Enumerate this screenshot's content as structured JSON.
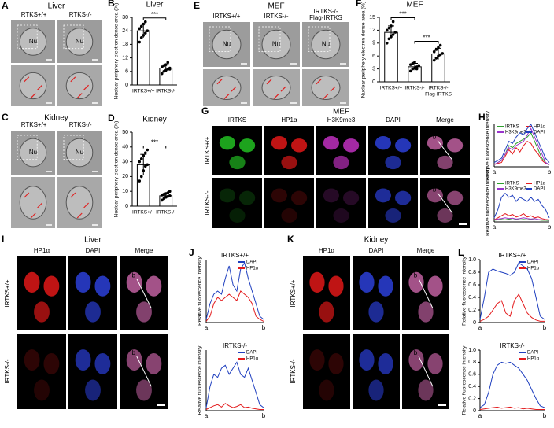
{
  "images": [
    {
      "letter": "A",
      "title": "Liver",
      "columns": [
        "IRTKS+/+",
        "IRTKS-/-"
      ],
      "labels": [
        "Nu",
        "Nu"
      ]
    },
    {
      "letter": "C",
      "title": "Kidney",
      "columns": [
        "IRTKS+/+",
        "IRTKS-/-"
      ],
      "labels": [
        "Nu",
        "Nu"
      ]
    },
    {
      "letter": "E",
      "title": "MEF",
      "columns": [
        "IRTKS+/+",
        "IRTKS-/-",
        "IRTKS-/-"
      ],
      "column_notes": [
        null,
        null,
        "Flag-IRTKS"
      ],
      "labels": [
        "Nu",
        "Nu",
        "Nu"
      ]
    },
    {
      "letter": "G",
      "title": "MEF",
      "columns": [
        "IRTKS",
        "HP1α",
        "H3K9me3",
        "DAPI",
        "Merge"
      ],
      "rows": [
        "IRTKS+/+",
        "IRTKS-/-"
      ],
      "point_labels": [
        "a",
        "b"
      ]
    },
    {
      "letter": "I",
      "title": "Liver",
      "columns": [
        "HP1α",
        "DAPI",
        "Merge"
      ],
      "rows": [
        "IRTKS+/+",
        "IRTKS-/-"
      ],
      "point_labels": [
        "a",
        "b"
      ]
    },
    {
      "letter": "K",
      "title": "Kidney",
      "columns": [
        "HP1α",
        "DAPI",
        "Merge"
      ],
      "rows": [
        "IRTKS+/+",
        "IRTKS-/-"
      ],
      "point_labels": [
        "a",
        "b"
      ]
    }
  ],
  "chart_data": [
    {
      "type": "bar",
      "letter": "B",
      "title": "Liver",
      "ylabel": "Nuclear periphery electron dense area (%)",
      "categories": [
        "IRTKS+/+",
        "IRTKS-/-"
      ],
      "values": [
        24,
        7.5
      ],
      "errors": [
        3,
        1.5
      ],
      "points": [
        [
          19,
          21,
          22,
          23,
          24,
          25,
          26,
          27,
          28,
          24
        ],
        [
          5,
          6,
          6.5,
          7,
          7.5,
          8,
          8.5,
          9,
          10,
          7
        ]
      ],
      "ylim": [
        0,
        30
      ],
      "yticks": [
        0,
        6,
        12,
        18,
        24,
        30
      ],
      "annotations": [
        "***"
      ]
    },
    {
      "type": "bar",
      "letter": "D",
      "title": "Kidney",
      "ylabel": "Nuclear periphery electron dense area (%)",
      "categories": [
        "IRTKS+/+",
        "IRTKS-/-"
      ],
      "values": [
        28,
        7
      ],
      "errors": [
        7,
        1.5
      ],
      "points": [
        [
          17,
          20,
          24,
          27,
          28,
          30,
          32,
          34,
          36,
          38
        ],
        [
          4,
          5,
          6,
          6.5,
          7,
          7.5,
          8,
          8.5,
          9,
          10
        ]
      ],
      "ylim": [
        0,
        50
      ],
      "yticks": [
        0,
        10,
        20,
        30,
        40,
        50
      ],
      "annotations": [
        "***"
      ]
    },
    {
      "type": "bar",
      "letter": "F",
      "title": "MEF",
      "ylabel": "Nuclear periphery electron dense area (%)",
      "categories": [
        "IRTKS+/+",
        "IRTKS-/-",
        "IRTKS-/-"
      ],
      "category_notes": [
        null,
        null,
        "Flag-IRTKS"
      ],
      "values": [
        11.5,
        3.5,
        6.5
      ],
      "errors": [
        1.5,
        0.8,
        1.3
      ],
      "points": [
        [
          9,
          10,
          10.5,
          11,
          11.5,
          12,
          12.5,
          13,
          14
        ],
        [
          2.5,
          3,
          3.2,
          3.5,
          3.8,
          4,
          4.3,
          4.6,
          3
        ],
        [
          5,
          5.5,
          6,
          6.3,
          6.6,
          7,
          7.5,
          8,
          8.5
        ]
      ],
      "ylim": [
        0,
        15
      ],
      "yticks": [
        0,
        3,
        6,
        9,
        12,
        15
      ],
      "annotations": [
        "***",
        "***"
      ]
    },
    {
      "type": "line",
      "letter": "H",
      "ylabel": "Relative fluorescence intensity",
      "xlabels": [
        "a",
        "b"
      ],
      "ylim": [
        0,
        1
      ],
      "series": [
        {
          "name": "IRTKS",
          "color": "#2ca02c",
          "values": [
            0.05,
            0.1,
            0.15,
            0.3,
            0.5,
            0.45,
            0.55,
            0.6,
            0.65,
            0.7,
            0.8,
            0.6,
            0.4,
            0.2,
            0.1,
            0.05
          ]
        },
        {
          "name": "HP1α",
          "color": "#e31a1c",
          "values": [
            0.05,
            0.08,
            0.1,
            0.25,
            0.4,
            0.3,
            0.45,
            0.35,
            0.5,
            0.6,
            0.55,
            0.4,
            0.3,
            0.15,
            0.08,
            0.05
          ]
        },
        {
          "name": "H3K9me3",
          "color": "#9933cc",
          "values": [
            0.05,
            0.1,
            0.15,
            0.3,
            0.45,
            0.4,
            0.5,
            0.55,
            0.6,
            0.75,
            0.9,
            0.7,
            0.5,
            0.3,
            0.1,
            0.05
          ]
        },
        {
          "name": "DAPI",
          "color": "#1f3fbf",
          "values": [
            0.1,
            0.15,
            0.2,
            0.4,
            0.6,
            0.55,
            0.7,
            0.8,
            0.75,
            0.9,
            1.0,
            0.8,
            0.6,
            0.4,
            0.2,
            0.1
          ]
        }
      ]
    },
    {
      "type": "line",
      "ylabel": "Relative fluorescence intensity",
      "xlabels": [
        "a",
        "b"
      ],
      "ylim": [
        0,
        1
      ],
      "series": [
        {
          "name": "IRTKS",
          "color": "#2ca02c",
          "values": [
            0.04,
            0.05,
            0.06,
            0.05,
            0.07,
            0.05,
            0.06,
            0.05,
            0.06,
            0.05,
            0.06,
            0.05,
            0.05,
            0.04,
            0.04,
            0.03
          ]
        },
        {
          "name": "HP1α",
          "color": "#e31a1c",
          "values": [
            0.05,
            0.1,
            0.15,
            0.2,
            0.15,
            0.18,
            0.12,
            0.15,
            0.2,
            0.12,
            0.15,
            0.1,
            0.12,
            0.08,
            0.06,
            0.05
          ]
        },
        {
          "name": "H3K9me3",
          "color": "#9933cc",
          "values": [
            0.05,
            0.07,
            0.08,
            0.1,
            0.08,
            0.09,
            0.07,
            0.08,
            0.1,
            0.08,
            0.07,
            0.08,
            0.06,
            0.05,
            0.05,
            0.04
          ]
        },
        {
          "name": "DAPI",
          "color": "#1f3fbf",
          "values": [
            0.1,
            0.3,
            0.6,
            0.7,
            0.6,
            0.65,
            0.5,
            0.6,
            0.55,
            0.5,
            0.6,
            0.5,
            0.55,
            0.4,
            0.3,
            0.1
          ]
        }
      ]
    },
    {
      "type": "line",
      "letter": "J",
      "subtitle": "IRTKS+/+",
      "ylabel": "Relative fluorescence intensity",
      "xlabels": [
        "a",
        "b"
      ],
      "ylim": [
        0,
        1
      ],
      "series": [
        {
          "name": "DAPI",
          "color": "#1f3fbf",
          "values": [
            0.05,
            0.3,
            0.45,
            0.5,
            0.45,
            0.7,
            0.9,
            0.6,
            0.5,
            0.85,
            0.95,
            0.7,
            0.5,
            0.3,
            0.1,
            0.05
          ]
        },
        {
          "name": "HP1α",
          "color": "#e31a1c",
          "values": [
            0.02,
            0.1,
            0.3,
            0.4,
            0.35,
            0.4,
            0.45,
            0.4,
            0.35,
            0.5,
            0.45,
            0.4,
            0.3,
            0.1,
            0.05,
            0.02
          ]
        }
      ]
    },
    {
      "type": "line",
      "subtitle": "IRTKS-/-",
      "ylabel": "Relative fluorescence intensity",
      "xlabels": [
        "a",
        "b"
      ],
      "ylim": [
        0,
        1
      ],
      "series": [
        {
          "name": "DAPI",
          "color": "#1f3fbf",
          "values": [
            0.05,
            0.4,
            0.6,
            0.55,
            0.7,
            0.75,
            0.6,
            0.7,
            0.8,
            0.6,
            0.55,
            0.7,
            0.5,
            0.3,
            0.1,
            0.05
          ]
        },
        {
          "name": "HP1α",
          "color": "#e31a1c",
          "values": [
            0.02,
            0.05,
            0.08,
            0.1,
            0.06,
            0.12,
            0.08,
            0.05,
            0.07,
            0.1,
            0.05,
            0.06,
            0.04,
            0.03,
            0.02,
            0.02
          ]
        }
      ]
    },
    {
      "type": "line",
      "letter": "L",
      "subtitle": "IRTKS+/+",
      "ylabel": "Relative fluorescence intensity",
      "xlabels": [
        "a",
        "b"
      ],
      "ylim": [
        0,
        1
      ],
      "yticks": [
        0,
        0.2,
        0.4,
        0.6,
        0.8,
        {
          "value": 1,
          "label": "1.0"
        }
      ],
      "series": [
        {
          "name": "DAPI",
          "color": "#1f3fbf",
          "values": [
            0.05,
            0.4,
            0.8,
            0.85,
            0.82,
            0.8,
            0.78,
            0.75,
            0.8,
            0.95,
            0.9,
            0.85,
            0.7,
            0.4,
            0.1,
            0.05
          ]
        },
        {
          "name": "HP1α",
          "color": "#e31a1c",
          "values": [
            0.02,
            0.05,
            0.1,
            0.2,
            0.3,
            0.35,
            0.15,
            0.1,
            0.35,
            0.45,
            0.3,
            0.15,
            0.08,
            0.04,
            0.02,
            0.02
          ]
        }
      ]
    },
    {
      "type": "line",
      "subtitle": "IRTKS-/-",
      "ylabel": "Relative fluorescence intensity",
      "xlabels": [
        "a",
        "b"
      ],
      "ylim": [
        0,
        1
      ],
      "yticks": [
        0,
        0.2,
        0.4,
        0.6,
        0.8,
        {
          "value": 1,
          "label": "1.0"
        }
      ],
      "series": [
        {
          "name": "DAPI",
          "color": "#1f3fbf",
          "values": [
            0.05,
            0.1,
            0.3,
            0.6,
            0.75,
            0.8,
            0.78,
            0.8,
            0.75,
            0.7,
            0.6,
            0.5,
            0.35,
            0.2,
            0.08,
            0.05
          ]
        },
        {
          "name": "HP1α",
          "color": "#e31a1c",
          "values": [
            0.02,
            0.03,
            0.04,
            0.05,
            0.06,
            0.04,
            0.05,
            0.06,
            0.04,
            0.05,
            0.03,
            0.04,
            0.03,
            0.02,
            0.02,
            0.02
          ]
        }
      ]
    }
  ]
}
